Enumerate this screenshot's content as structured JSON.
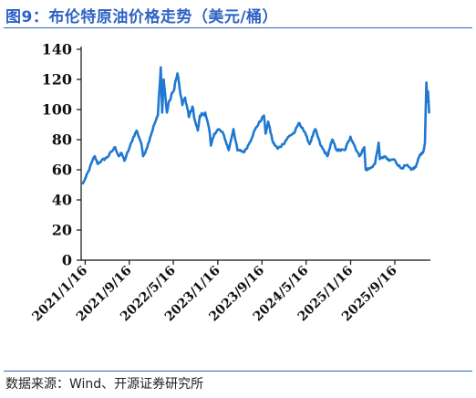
{
  "title": "图9：布伦特原油价格走势（美元/桶）",
  "source": "数据来源：Wind、开源证券研究所",
  "colors": {
    "title": "#2e63c4",
    "line": "#1f78d1",
    "axis": "#111111"
  },
  "chart_data": {
    "type": "line",
    "title": "布伦特原油价格走势（美元/桶）",
    "xlabel": "",
    "ylabel": "",
    "ylim": [
      0,
      140
    ],
    "yticks": [
      0,
      20,
      40,
      60,
      80,
      100,
      120,
      140
    ],
    "xticks": [
      "2021/1/16",
      "2021/9/16",
      "2022/5/16",
      "2023/1/16",
      "2023/9/16",
      "2024/5/16",
      "2025/1/16",
      "2025/9/16"
    ],
    "grid": false,
    "series": [
      {
        "values": [
          [
            "2021-01-04",
            51
          ],
          [
            "2021-01-20",
            55
          ],
          [
            "2021-02-10",
            61
          ],
          [
            "2021-02-25",
            66
          ],
          [
            "2021-03-10",
            69
          ],
          [
            "2021-03-25",
            64
          ],
          [
            "2021-04-15",
            66
          ],
          [
            "2021-05-15",
            68
          ],
          [
            "2021-06-10",
            72
          ],
          [
            "2021-06-30",
            75
          ],
          [
            "2021-07-20",
            69
          ],
          [
            "2021-08-05",
            71
          ],
          [
            "2021-08-20",
            66
          ],
          [
            "2021-09-15",
            74
          ],
          [
            "2021-10-10",
            82
          ],
          [
            "2021-10-26",
            86
          ],
          [
            "2021-11-20",
            78
          ],
          [
            "2021-12-01",
            69
          ],
          [
            "2021-12-20",
            74
          ],
          [
            "2022-01-10",
            82
          ],
          [
            "2022-01-31",
            90
          ],
          [
            "2022-02-20",
            96
          ],
          [
            "2022-03-08",
            128
          ],
          [
            "2022-03-16",
            98
          ],
          [
            "2022-03-24",
            120
          ],
          [
            "2022-04-11",
            98
          ],
          [
            "2022-04-25",
            106
          ],
          [
            "2022-05-16",
            112
          ],
          [
            "2022-06-08",
            124
          ],
          [
            "2022-06-20",
            114
          ],
          [
            "2022-07-05",
            103
          ],
          [
            "2022-07-20",
            108
          ],
          [
            "2022-08-10",
            95
          ],
          [
            "2022-08-29",
            102
          ],
          [
            "2022-09-16",
            91
          ],
          [
            "2022-09-28",
            86
          ],
          [
            "2022-10-10",
            96
          ],
          [
            "2022-11-08",
            98
          ],
          [
            "2022-12-01",
            86
          ],
          [
            "2022-12-09",
            76
          ],
          [
            "2022-12-28",
            84
          ],
          [
            "2023-01-20",
            87
          ],
          [
            "2023-02-15",
            84
          ],
          [
            "2023-03-17",
            73
          ],
          [
            "2023-04-12",
            87
          ],
          [
            "2023-05-04",
            73
          ],
          [
            "2023-06-12",
            72
          ],
          [
            "2023-07-10",
            78
          ],
          [
            "2023-08-10",
            87
          ],
          [
            "2023-09-15",
            94
          ],
          [
            "2023-09-27",
            96
          ],
          [
            "2023-10-06",
            84
          ],
          [
            "2023-10-20",
            92
          ],
          [
            "2023-11-16",
            78
          ],
          [
            "2023-12-12",
            74
          ],
          [
            "2024-01-10",
            77
          ],
          [
            "2024-02-10",
            82
          ],
          [
            "2024-03-15",
            85
          ],
          [
            "2024-04-05",
            91
          ],
          [
            "2024-04-25",
            88
          ],
          [
            "2024-05-15",
            83
          ],
          [
            "2024-06-04",
            77
          ],
          [
            "2024-07-05",
            87
          ],
          [
            "2024-08-05",
            76
          ],
          [
            "2024-09-10",
            69
          ],
          [
            "2024-10-07",
            80
          ],
          [
            "2024-11-01",
            73
          ],
          [
            "2024-12-15",
            73
          ],
          [
            "2025-01-15",
            82
          ],
          [
            "2025-02-10",
            75
          ],
          [
            "2025-03-05",
            69
          ],
          [
            "2025-04-01",
            75
          ],
          [
            "2025-04-09",
            60
          ],
          [
            "2025-05-05",
            61
          ],
          [
            "2025-05-30",
            64
          ],
          [
            "2025-06-19",
            78
          ],
          [
            "2025-06-26",
            67
          ],
          [
            "2025-07-20",
            69
          ],
          [
            "2025-08-15",
            66
          ],
          [
            "2025-09-10",
            67
          ],
          [
            "2025-10-20",
            61
          ],
          [
            "2025-11-20",
            63
          ],
          [
            "2025-12-15",
            60
          ],
          [
            "2026-01-10",
            62
          ],
          [
            "2026-02-01",
            70
          ],
          [
            "2026-02-20",
            72
          ],
          [
            "2026-03-01",
            78
          ],
          [
            "2026-03-09",
            118
          ],
          [
            "2026-03-14",
            105
          ],
          [
            "2026-03-18",
            112
          ],
          [
            "2026-03-24",
            98
          ]
        ]
      }
    ]
  }
}
